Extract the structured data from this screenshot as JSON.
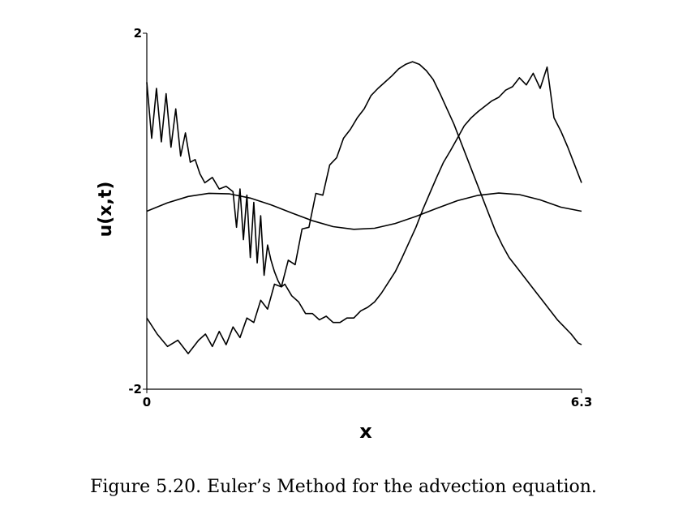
{
  "caption": "Figure 5.20. Euler’s Method for the advection equation.",
  "chart_data": {
    "type": "line",
    "title": "",
    "xlabel": "x",
    "ylabel": "u(x,t)",
    "xlim": [
      0,
      6.3
    ],
    "ylim": [
      -2,
      2
    ],
    "x_ticks": [
      {
        "value": 0,
        "label": "0"
      },
      {
        "value": 6.3,
        "label": "6.3"
      }
    ],
    "y_ticks": [
      {
        "value": 2,
        "label": "2"
      },
      {
        "value": -2,
        "label": "-2"
      }
    ],
    "grid": false,
    "line_color": "#000000",
    "series": [
      {
        "x": [
          0,
          0.3,
          0.6,
          0.9,
          1.2,
          1.5,
          1.8,
          2.1,
          2.4,
          2.7,
          3.0,
          3.3,
          3.6,
          3.9,
          4.2,
          4.5,
          4.8,
          5.1,
          5.4,
          5.7,
          6.0,
          6.3
        ],
        "y": [
          0.0,
          0.095,
          0.166,
          0.201,
          0.195,
          0.148,
          0.072,
          -0.019,
          -0.107,
          -0.173,
          -0.203,
          -0.191,
          -0.138,
          -0.058,
          0.032,
          0.118,
          0.179,
          0.204,
          0.187,
          0.128,
          0.046,
          0.0
        ]
      },
      {
        "x": [
          0,
          0.07,
          0.14,
          0.21,
          0.28,
          0.35,
          0.42,
          0.49,
          0.56,
          0.63,
          0.7,
          0.77,
          0.84,
          0.95,
          1.05,
          1.15,
          1.25,
          1.3,
          1.35,
          1.4,
          1.45,
          1.5,
          1.55,
          1.6,
          1.65,
          1.7,
          1.75,
          1.8,
          1.85,
          1.9,
          1.95,
          2.0,
          2.1,
          2.2,
          2.3,
          2.4,
          2.5,
          2.6,
          2.7,
          2.8,
          2.9,
          3.0,
          3.1,
          3.2,
          3.3,
          3.4,
          3.5,
          3.6,
          3.7,
          3.8,
          3.9,
          4.0,
          4.1,
          4.2,
          4.3,
          4.4,
          4.5,
          4.6,
          4.7,
          4.8,
          4.9,
          5.0,
          5.1,
          5.2,
          5.3,
          5.4,
          5.5,
          5.6,
          5.7,
          5.8,
          5.9,
          6.0,
          6.1,
          6.2,
          6.3
        ],
        "y": [
          1.45,
          0.82,
          1.38,
          0.78,
          1.32,
          0.72,
          1.15,
          0.62,
          0.88,
          0.55,
          0.58,
          0.42,
          0.32,
          0.38,
          0.25,
          0.28,
          0.22,
          -0.18,
          0.25,
          -0.32,
          0.18,
          -0.52,
          0.1,
          -0.58,
          -0.05,
          -0.72,
          -0.38,
          -0.55,
          -0.68,
          -0.78,
          -0.85,
          -0.82,
          -0.95,
          -1.02,
          -1.15,
          -1.15,
          -1.22,
          -1.18,
          -1.25,
          -1.25,
          -1.2,
          -1.2,
          -1.12,
          -1.08,
          -1.02,
          -0.92,
          -0.8,
          -0.68,
          -0.52,
          -0.35,
          -0.18,
          0.02,
          0.2,
          0.38,
          0.55,
          0.68,
          0.82,
          0.96,
          1.05,
          1.12,
          1.18,
          1.24,
          1.28,
          1.36,
          1.4,
          1.5,
          1.42,
          1.55,
          1.38,
          1.62,
          1.05,
          0.9,
          0.72,
          0.52,
          0.32
        ]
      },
      {
        "x": [
          0,
          0.15,
          0.3,
          0.45,
          0.6,
          0.75,
          0.85,
          0.95,
          1.05,
          1.15,
          1.25,
          1.35,
          1.45,
          1.55,
          1.65,
          1.75,
          1.85,
          1.95,
          2.05,
          2.15,
          2.25,
          2.35,
          2.45,
          2.55,
          2.65,
          2.75,
          2.85,
          2.95,
          3.05,
          3.15,
          3.25,
          3.35,
          3.45,
          3.55,
          3.65,
          3.75,
          3.85,
          3.95,
          4.05,
          4.15,
          4.25,
          4.35,
          4.45,
          4.55,
          4.65,
          4.75,
          4.85,
          4.95,
          5.05,
          5.15,
          5.25,
          5.35,
          5.45,
          5.55,
          5.65,
          5.75,
          5.85,
          5.95,
          6.05,
          6.15,
          6.25,
          6.3
        ],
        "y": [
          -1.2,
          -1.38,
          -1.52,
          -1.45,
          -1.6,
          -1.45,
          -1.38,
          -1.52,
          -1.35,
          -1.5,
          -1.3,
          -1.42,
          -1.2,
          -1.25,
          -1.0,
          -1.1,
          -0.82,
          -0.85,
          -0.55,
          -0.6,
          -0.2,
          -0.18,
          0.2,
          0.18,
          0.52,
          0.6,
          0.82,
          0.92,
          1.05,
          1.15,
          1.3,
          1.38,
          1.45,
          1.52,
          1.6,
          1.65,
          1.68,
          1.65,
          1.58,
          1.48,
          1.32,
          1.15,
          0.98,
          0.78,
          0.58,
          0.38,
          0.18,
          -0.02,
          -0.22,
          -0.38,
          -0.52,
          -0.62,
          -0.72,
          -0.82,
          -0.92,
          -1.02,
          -1.12,
          -1.22,
          -1.3,
          -1.38,
          -1.48,
          -1.5
        ]
      }
    ]
  }
}
